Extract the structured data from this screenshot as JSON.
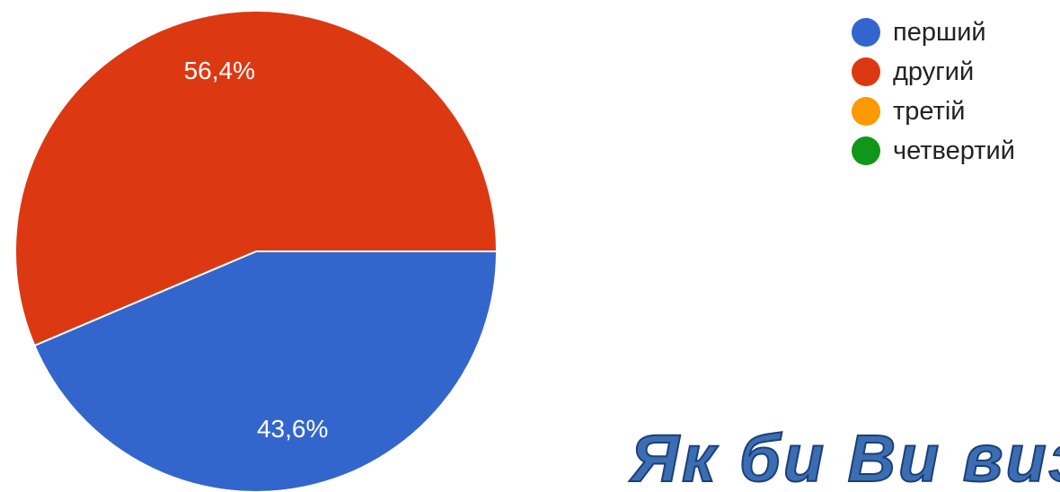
{
  "chart_data": {
    "type": "pie",
    "slices": [
      {
        "name": "перший",
        "value": 43.6,
        "label": "43,6%",
        "color": "#3366cc"
      },
      {
        "name": "другий",
        "value": 56.4,
        "label": "56,4%",
        "color": "#dc3912"
      },
      {
        "name": "третій",
        "value": 0,
        "label": "",
        "color": "#ff9900"
      },
      {
        "name": "четвертий",
        "value": 0,
        "label": "",
        "color": "#109618"
      }
    ],
    "legend_position": "top-right"
  },
  "legend": {
    "items": [
      {
        "label": "перший",
        "color": "#3366cc"
      },
      {
        "label": "другий",
        "color": "#dc3912"
      },
      {
        "label": "третій",
        "color": "#ff9900"
      },
      {
        "label": "четвертий",
        "color": "#109618"
      }
    ]
  },
  "overlay": {
    "heading": "Як би Ви виз"
  }
}
